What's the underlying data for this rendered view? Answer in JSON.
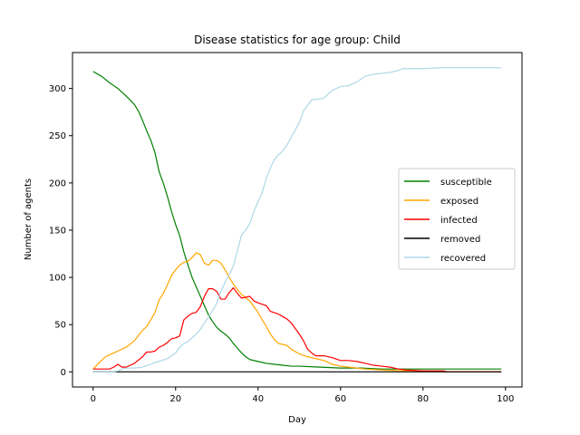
{
  "chart_data": {
    "type": "line",
    "title": "Disease statistics for age group: Child",
    "xlabel": "Day",
    "ylabel": "Number of agents",
    "xlim": [
      -5,
      104
    ],
    "ylim": [
      -16,
      338
    ],
    "xticks": [
      0,
      20,
      40,
      60,
      80,
      100
    ],
    "yticks": [
      0,
      50,
      100,
      150,
      200,
      250,
      300
    ],
    "grid": false,
    "legend_position": "center-right",
    "series": [
      {
        "name": "susceptible",
        "color": "#008000",
        "points": [
          [
            0,
            318
          ],
          [
            2,
            313
          ],
          [
            4,
            306
          ],
          [
            6,
            300
          ],
          [
            8,
            292
          ],
          [
            10,
            283
          ],
          [
            11,
            276
          ],
          [
            12,
            266
          ],
          [
            13,
            255
          ],
          [
            14,
            245
          ],
          [
            15,
            232
          ],
          [
            16,
            212
          ],
          [
            17,
            200
          ],
          [
            18,
            186
          ],
          [
            19,
            170
          ],
          [
            20,
            156
          ],
          [
            21,
            144
          ],
          [
            22,
            127
          ],
          [
            23,
            113
          ],
          [
            24,
            100
          ],
          [
            25,
            90
          ],
          [
            26,
            80
          ],
          [
            27,
            70
          ],
          [
            28,
            60
          ],
          [
            29,
            53
          ],
          [
            30,
            47
          ],
          [
            31,
            43
          ],
          [
            32,
            40
          ],
          [
            33,
            36
          ],
          [
            34,
            30
          ],
          [
            35,
            25
          ],
          [
            36,
            20
          ],
          [
            37,
            16
          ],
          [
            38,
            13
          ],
          [
            40,
            11
          ],
          [
            42,
            9
          ],
          [
            44,
            8
          ],
          [
            46,
            7
          ],
          [
            48,
            6
          ],
          [
            50,
            6
          ],
          [
            55,
            5
          ],
          [
            60,
            4
          ],
          [
            65,
            4
          ],
          [
            70,
            3
          ],
          [
            80,
            3
          ],
          [
            90,
            3
          ],
          [
            99,
            3
          ]
        ]
      },
      {
        "name": "exposed",
        "color": "#ffa500",
        "points": [
          [
            0,
            3
          ],
          [
            2,
            12
          ],
          [
            3,
            16
          ],
          [
            4,
            18
          ],
          [
            6,
            22
          ],
          [
            8,
            26
          ],
          [
            10,
            33
          ],
          [
            12,
            44
          ],
          [
            13,
            48
          ],
          [
            14,
            55
          ],
          [
            15,
            63
          ],
          [
            16,
            76
          ],
          [
            17,
            83
          ],
          [
            18,
            92
          ],
          [
            19,
            102
          ],
          [
            20,
            108
          ],
          [
            21,
            113
          ],
          [
            22,
            116
          ],
          [
            23,
            117
          ],
          [
            24,
            121
          ],
          [
            25,
            126
          ],
          [
            26,
            124
          ],
          [
            27,
            115
          ],
          [
            28,
            113
          ],
          [
            29,
            118
          ],
          [
            30,
            118
          ],
          [
            31,
            115
          ],
          [
            32,
            108
          ],
          [
            33,
            100
          ],
          [
            34,
            93
          ],
          [
            35,
            87
          ],
          [
            36,
            82
          ],
          [
            38,
            75
          ],
          [
            40,
            63
          ],
          [
            41,
            55
          ],
          [
            42,
            48
          ],
          [
            43,
            40
          ],
          [
            44,
            34
          ],
          [
            45,
            30
          ],
          [
            47,
            28
          ],
          [
            48,
            24
          ],
          [
            50,
            19
          ],
          [
            52,
            16
          ],
          [
            54,
            14
          ],
          [
            56,
            12
          ],
          [
            58,
            8
          ],
          [
            60,
            6
          ],
          [
            62,
            5
          ],
          [
            64,
            4
          ],
          [
            66,
            3
          ],
          [
            70,
            2
          ],
          [
            75,
            1
          ],
          [
            80,
            1
          ],
          [
            85,
            0
          ],
          [
            99,
            0
          ]
        ]
      },
      {
        "name": "infected",
        "color": "#ff0000",
        "points": [
          [
            0,
            3
          ],
          [
            2,
            3
          ],
          [
            4,
            3
          ],
          [
            5,
            5
          ],
          [
            6,
            8
          ],
          [
            7,
            5
          ],
          [
            8,
            5
          ],
          [
            10,
            9
          ],
          [
            12,
            16
          ],
          [
            13,
            21
          ],
          [
            14,
            21
          ],
          [
            15,
            22
          ],
          [
            16,
            26
          ],
          [
            17,
            28
          ],
          [
            18,
            31
          ],
          [
            19,
            35
          ],
          [
            20,
            36
          ],
          [
            21,
            38
          ],
          [
            22,
            55
          ],
          [
            23,
            59
          ],
          [
            24,
            62
          ],
          [
            25,
            63
          ],
          [
            26,
            69
          ],
          [
            27,
            80
          ],
          [
            28,
            88
          ],
          [
            29,
            88
          ],
          [
            30,
            85
          ],
          [
            31,
            77
          ],
          [
            32,
            77
          ],
          [
            33,
            84
          ],
          [
            34,
            89
          ],
          [
            35,
            83
          ],
          [
            36,
            78
          ],
          [
            38,
            80
          ],
          [
            39,
            75
          ],
          [
            40,
            73
          ],
          [
            42,
            70
          ],
          [
            43,
            64
          ],
          [
            45,
            61
          ],
          [
            47,
            56
          ],
          [
            48,
            52
          ],
          [
            50,
            40
          ],
          [
            51,
            33
          ],
          [
            52,
            24
          ],
          [
            53,
            20
          ],
          [
            54,
            17
          ],
          [
            56,
            17
          ],
          [
            58,
            15
          ],
          [
            60,
            12
          ],
          [
            62,
            12
          ],
          [
            64,
            11
          ],
          [
            66,
            9
          ],
          [
            68,
            7
          ],
          [
            70,
            6
          ],
          [
            72,
            5
          ],
          [
            74,
            3
          ],
          [
            76,
            2
          ],
          [
            80,
            1
          ],
          [
            85,
            1
          ],
          [
            86,
            0
          ],
          [
            99,
            0
          ]
        ]
      },
      {
        "name": "removed",
        "color": "#000000",
        "points": [
          [
            0,
            0
          ],
          [
            99,
            0
          ]
        ]
      },
      {
        "name": "recovered",
        "color": "#add8e6",
        "points": [
          [
            0,
            0
          ],
          [
            5,
            0
          ],
          [
            6,
            1
          ],
          [
            7,
            3
          ],
          [
            8,
            4
          ],
          [
            10,
            4
          ],
          [
            12,
            5
          ],
          [
            14,
            8
          ],
          [
            15,
            10
          ],
          [
            16,
            11
          ],
          [
            18,
            14
          ],
          [
            20,
            20
          ],
          [
            21,
            26
          ],
          [
            22,
            30
          ],
          [
            23,
            32
          ],
          [
            24,
            36
          ],
          [
            25,
            40
          ],
          [
            26,
            45
          ],
          [
            27,
            52
          ],
          [
            28,
            58
          ],
          [
            29,
            65
          ],
          [
            30,
            73
          ],
          [
            31,
            85
          ],
          [
            32,
            95
          ],
          [
            33,
            103
          ],
          [
            34,
            112
          ],
          [
            35,
            128
          ],
          [
            36,
            145
          ],
          [
            37,
            150
          ],
          [
            38,
            157
          ],
          [
            39,
            170
          ],
          [
            40,
            180
          ],
          [
            41,
            190
          ],
          [
            42,
            205
          ],
          [
            43,
            216
          ],
          [
            44,
            225
          ],
          [
            45,
            230
          ],
          [
            46,
            234
          ],
          [
            47,
            240
          ],
          [
            48,
            248
          ],
          [
            49,
            256
          ],
          [
            50,
            264
          ],
          [
            51,
            276
          ],
          [
            52,
            282
          ],
          [
            53,
            288
          ],
          [
            55,
            289
          ],
          [
            56,
            290
          ],
          [
            57,
            294
          ],
          [
            58,
            298
          ],
          [
            60,
            302
          ],
          [
            62,
            303
          ],
          [
            63,
            305
          ],
          [
            64,
            307
          ],
          [
            65,
            310
          ],
          [
            66,
            313
          ],
          [
            68,
            315
          ],
          [
            70,
            316
          ],
          [
            72,
            317
          ],
          [
            74,
            319
          ],
          [
            75,
            321
          ],
          [
            80,
            321
          ],
          [
            85,
            322
          ],
          [
            90,
            322
          ],
          [
            99,
            322
          ]
        ]
      }
    ]
  }
}
